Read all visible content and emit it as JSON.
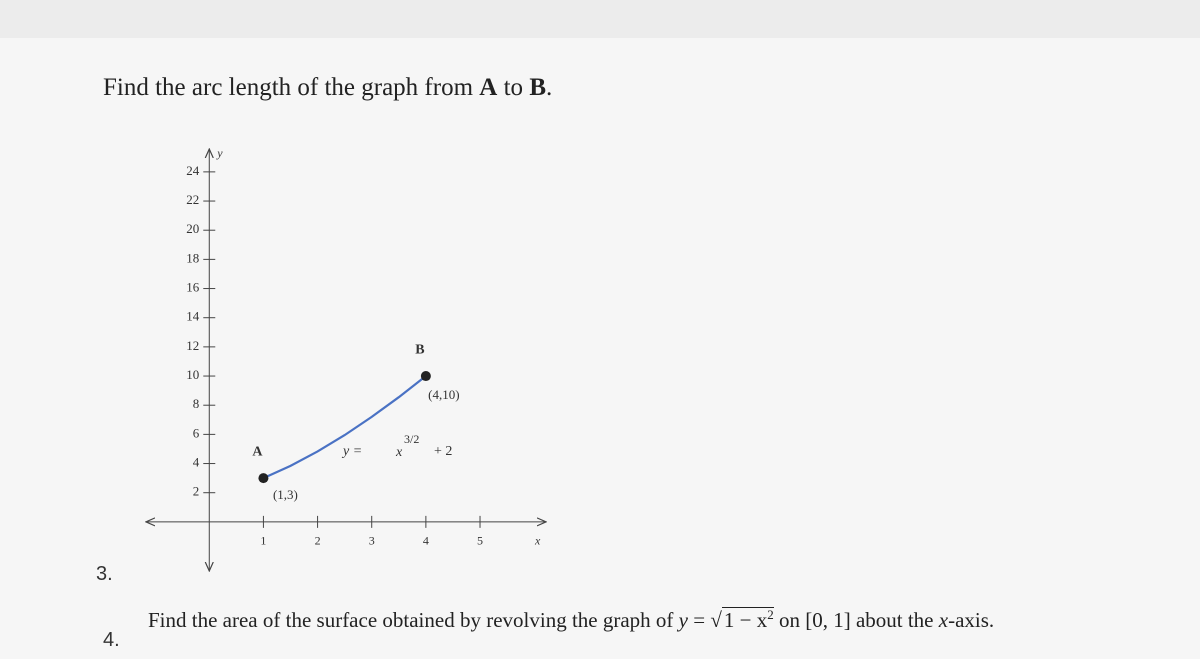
{
  "problem_3": {
    "number": "3.",
    "prompt": [
      "Find the arc length of the graph from ",
      "A",
      " to ",
      "B",
      "."
    ],
    "graph": {
      "type": "line",
      "x_label": "x",
      "y_label": "y",
      "xlim": [
        -1.15,
        6.2
      ],
      "ylim": [
        -3.3,
        25.5
      ],
      "xticks": [
        1,
        2,
        3,
        4,
        5
      ],
      "yticks": [
        2,
        4,
        6,
        8,
        10,
        12,
        14,
        16,
        18,
        20,
        22,
        24
      ],
      "color": "#4a72c4",
      "curve": {
        "x": [
          1,
          1.5,
          2,
          2.5,
          3,
          3.5,
          4
        ],
        "y": [
          3,
          3.84,
          4.83,
          5.95,
          7.2,
          8.55,
          10
        ]
      },
      "points": [
        {
          "name": "A",
          "label": "(1,3)",
          "x": 1,
          "y": 3
        },
        {
          "name": "B",
          "label": "(4,10)",
          "x": 4,
          "y": 10
        }
      ],
      "equation": {
        "lhs": "y =",
        "base": "x",
        "exponent": "3/2",
        "rest": "+ 2"
      }
    }
  },
  "problem_4": {
    "number": "4.",
    "prompt": [
      "Find the area of the surface obtained by revolving the graph of ",
      "y",
      " = ",
      "1 − x",
      "2",
      " on [0, 1] about the ",
      "x",
      "-axis."
    ]
  }
}
